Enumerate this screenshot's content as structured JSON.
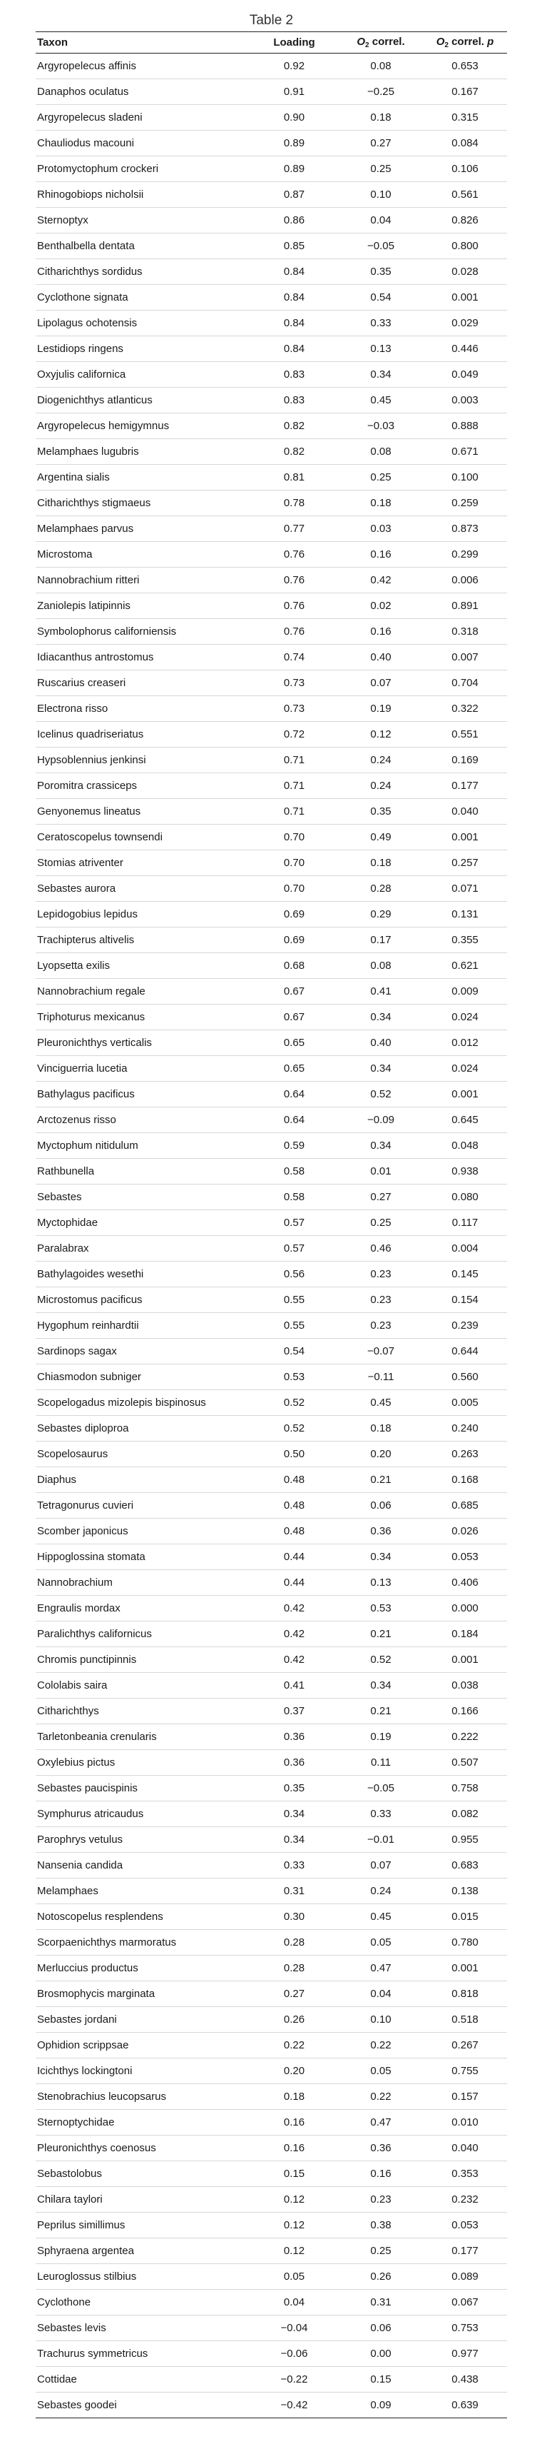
{
  "caption": "Table 2",
  "headers": {
    "taxon": "Taxon",
    "loading": "Loading",
    "o2_sym": "O",
    "o2_sub": "2",
    "correl": " correl.",
    "correl_p": " correl. ",
    "p": "p"
  },
  "rows": [
    [
      "Argyropelecus affinis",
      "0.92",
      "0.08",
      "0.653"
    ],
    [
      "Danaphos oculatus",
      "0.91",
      "−0.25",
      "0.167"
    ],
    [
      "Argyropelecus sladeni",
      "0.90",
      "0.18",
      "0.315"
    ],
    [
      "Chauliodus macouni",
      "0.89",
      "0.27",
      "0.084"
    ],
    [
      "Protomyctophum crockeri",
      "0.89",
      "0.25",
      "0.106"
    ],
    [
      "Rhinogobiops nicholsii",
      "0.87",
      "0.10",
      "0.561"
    ],
    [
      "Sternoptyx",
      "0.86",
      "0.04",
      "0.826"
    ],
    [
      "Benthalbella dentata",
      "0.85",
      "−0.05",
      "0.800"
    ],
    [
      "Citharichthys sordidus",
      "0.84",
      "0.35",
      "0.028"
    ],
    [
      "Cyclothone signata",
      "0.84",
      "0.54",
      "0.001"
    ],
    [
      "Lipolagus ochotensis",
      "0.84",
      "0.33",
      "0.029"
    ],
    [
      "Lestidiops ringens",
      "0.84",
      "0.13",
      "0.446"
    ],
    [
      "Oxyjulis californica",
      "0.83",
      "0.34",
      "0.049"
    ],
    [
      "Diogenichthys atlanticus",
      "0.83",
      "0.45",
      "0.003"
    ],
    [
      "Argyropelecus hemigymnus",
      "0.82",
      "−0.03",
      "0.888"
    ],
    [
      "Melamphaes lugubris",
      "0.82",
      "0.08",
      "0.671"
    ],
    [
      "Argentina sialis",
      "0.81",
      "0.25",
      "0.100"
    ],
    [
      "Citharichthys stigmaeus",
      "0.78",
      "0.18",
      "0.259"
    ],
    [
      "Melamphaes parvus",
      "0.77",
      "0.03",
      "0.873"
    ],
    [
      "Microstoma",
      "0.76",
      "0.16",
      "0.299"
    ],
    [
      "Nannobrachium ritteri",
      "0.76",
      "0.42",
      "0.006"
    ],
    [
      "Zaniolepis latipinnis",
      "0.76",
      "0.02",
      "0.891"
    ],
    [
      "Symbolophorus californiensis",
      "0.76",
      "0.16",
      "0.318"
    ],
    [
      "Idiacanthus antrostomus",
      "0.74",
      "0.40",
      "0.007"
    ],
    [
      "Ruscarius creaseri",
      "0.73",
      "0.07",
      "0.704"
    ],
    [
      "Electrona risso",
      "0.73",
      "0.19",
      "0.322"
    ],
    [
      "Icelinus quadriseriatus",
      "0.72",
      "0.12",
      "0.551"
    ],
    [
      "Hypsoblennius jenkinsi",
      "0.71",
      "0.24",
      "0.169"
    ],
    [
      "Poromitra crassiceps",
      "0.71",
      "0.24",
      "0.177"
    ],
    [
      "Genyonemus lineatus",
      "0.71",
      "0.35",
      "0.040"
    ],
    [
      "Ceratoscopelus townsendi",
      "0.70",
      "0.49",
      "0.001"
    ],
    [
      "Stomias atriventer",
      "0.70",
      "0.18",
      "0.257"
    ],
    [
      "Sebastes aurora",
      "0.70",
      "0.28",
      "0.071"
    ],
    [
      "Lepidogobius lepidus",
      "0.69",
      "0.29",
      "0.131"
    ],
    [
      "Trachipterus altivelis",
      "0.69",
      "0.17",
      "0.355"
    ],
    [
      "Lyopsetta exilis",
      "0.68",
      "0.08",
      "0.621"
    ],
    [
      "Nannobrachium regale",
      "0.67",
      "0.41",
      "0.009"
    ],
    [
      "Triphoturus mexicanus",
      "0.67",
      "0.34",
      "0.024"
    ],
    [
      "Pleuronichthys verticalis",
      "0.65",
      "0.40",
      "0.012"
    ],
    [
      "Vinciguerria lucetia",
      "0.65",
      "0.34",
      "0.024"
    ],
    [
      "Bathylagus pacificus",
      "0.64",
      "0.52",
      "0.001"
    ],
    [
      "Arctozenus risso",
      "0.64",
      "−0.09",
      "0.645"
    ],
    [
      "Myctophum nitidulum",
      "0.59",
      "0.34",
      "0.048"
    ],
    [
      "Rathbunella",
      "0.58",
      "0.01",
      "0.938"
    ],
    [
      "Sebastes",
      "0.58",
      "0.27",
      "0.080"
    ],
    [
      "Myctophidae",
      "0.57",
      "0.25",
      "0.117"
    ],
    [
      "Paralabrax",
      "0.57",
      "0.46",
      "0.004"
    ],
    [
      "Bathylagoides wesethi",
      "0.56",
      "0.23",
      "0.145"
    ],
    [
      "Microstomus pacificus",
      "0.55",
      "0.23",
      "0.154"
    ],
    [
      "Hygophum reinhardtii",
      "0.55",
      "0.23",
      "0.239"
    ],
    [
      "Sardinops sagax",
      "0.54",
      "−0.07",
      "0.644"
    ],
    [
      "Chiasmodon subniger",
      "0.53",
      "−0.11",
      "0.560"
    ],
    [
      "Scopelogadus mizolepis bispinosus",
      "0.52",
      "0.45",
      "0.005"
    ],
    [
      "Sebastes diploproa",
      "0.52",
      "0.18",
      "0.240"
    ],
    [
      "Scopelosaurus",
      "0.50",
      "0.20",
      "0.263"
    ],
    [
      "Diaphus",
      "0.48",
      "0.21",
      "0.168"
    ],
    [
      "Tetragonurus cuvieri",
      "0.48",
      "0.06",
      "0.685"
    ],
    [
      "Scomber japonicus",
      "0.48",
      "0.36",
      "0.026"
    ],
    [
      "Hippoglossina stomata",
      "0.44",
      "0.34",
      "0.053"
    ],
    [
      "Nannobrachium",
      "0.44",
      "0.13",
      "0.406"
    ],
    [
      "Engraulis mordax",
      "0.42",
      "0.53",
      "0.000"
    ],
    [
      "Paralichthys californicus",
      "0.42",
      "0.21",
      "0.184"
    ],
    [
      "Chromis punctipinnis",
      "0.42",
      "0.52",
      "0.001"
    ],
    [
      "Cololabis saira",
      "0.41",
      "0.34",
      "0.038"
    ],
    [
      "Citharichthys",
      "0.37",
      "0.21",
      "0.166"
    ],
    [
      "Tarletonbeania crenularis",
      "0.36",
      "0.19",
      "0.222"
    ],
    [
      "Oxylebius pictus",
      "0.36",
      "0.11",
      "0.507"
    ],
    [
      "Sebastes paucispinis",
      "0.35",
      "−0.05",
      "0.758"
    ],
    [
      "Symphurus atricaudus",
      "0.34",
      "0.33",
      "0.082"
    ],
    [
      "Parophrys vetulus",
      "0.34",
      "−0.01",
      "0.955"
    ],
    [
      "Nansenia candida",
      "0.33",
      "0.07",
      "0.683"
    ],
    [
      "Melamphaes",
      "0.31",
      "0.24",
      "0.138"
    ],
    [
      "Notoscopelus resplendens",
      "0.30",
      "0.45",
      "0.015"
    ],
    [
      "Scorpaenichthys marmoratus",
      "0.28",
      "0.05",
      "0.780"
    ],
    [
      "Merluccius productus",
      "0.28",
      "0.47",
      "0.001"
    ],
    [
      "Brosmophycis marginata",
      "0.27",
      "0.04",
      "0.818"
    ],
    [
      "Sebastes jordani",
      "0.26",
      "0.10",
      "0.518"
    ],
    [
      "Ophidion scrippsae",
      "0.22",
      "0.22",
      "0.267"
    ],
    [
      "Icichthys lockingtoni",
      "0.20",
      "0.05",
      "0.755"
    ],
    [
      "Stenobrachius leucopsarus",
      "0.18",
      "0.22",
      "0.157"
    ],
    [
      "Sternoptychidae",
      "0.16",
      "0.47",
      "0.010"
    ],
    [
      "Pleuronichthys coenosus",
      "0.16",
      "0.36",
      "0.040"
    ],
    [
      "Sebastolobus",
      "0.15",
      "0.16",
      "0.353"
    ],
    [
      "Chilara taylori",
      "0.12",
      "0.23",
      "0.232"
    ],
    [
      "Peprilus simillimus",
      "0.12",
      "0.38",
      "0.053"
    ],
    [
      "Sphyraena argentea",
      "0.12",
      "0.25",
      "0.177"
    ],
    [
      "Leuroglossus stilbius",
      "0.05",
      "0.26",
      "0.089"
    ],
    [
      "Cyclothone",
      "0.04",
      "0.31",
      "0.067"
    ],
    [
      "Sebastes levis",
      "−0.04",
      "0.06",
      "0.753"
    ],
    [
      "Trachurus symmetricus",
      "−0.06",
      "0.00",
      "0.977"
    ],
    [
      "Cottidae",
      "−0.22",
      "0.15",
      "0.438"
    ],
    [
      "Sebastes goodei",
      "−0.42",
      "0.09",
      "0.639"
    ]
  ]
}
